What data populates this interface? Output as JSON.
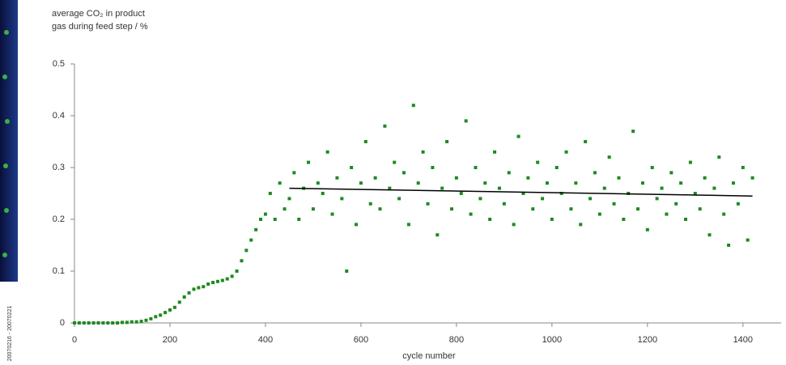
{
  "chart_data": {
    "type": "scatter",
    "title": [
      "average CO₂ in product",
      "gas during feed step / %"
    ],
    "x_label": "cycle number",
    "side_note": "20070216 - 20070221",
    "color": "#1e8a1e",
    "xlim": [
      0,
      1480
    ],
    "xticks": [
      0,
      200,
      400,
      600,
      800,
      1000,
      1200,
      1400
    ],
    "ylim": [
      0,
      0.5
    ],
    "yticks": [
      0,
      0.1,
      0.2,
      0.3,
      0.4,
      0.5
    ],
    "grid": false,
    "x": [
      0,
      10,
      20,
      30,
      40,
      50,
      60,
      70,
      80,
      90,
      100,
      110,
      120,
      130,
      140,
      150,
      160,
      170,
      180,
      190,
      200,
      210,
      220,
      230,
      240,
      250,
      260,
      270,
      280,
      290,
      300,
      310,
      320,
      330,
      340,
      350,
      360,
      370,
      380,
      390,
      400,
      410,
      420,
      430,
      440,
      450,
      460,
      470,
      480,
      490,
      500,
      510,
      520,
      530,
      540,
      550,
      560,
      570,
      580,
      590,
      600,
      610,
      620,
      630,
      640,
      650,
      660,
      670,
      680,
      690,
      700,
      710,
      720,
      730,
      740,
      750,
      760,
      770,
      780,
      790,
      800,
      810,
      820,
      830,
      840,
      850,
      860,
      870,
      880,
      890,
      900,
      910,
      920,
      930,
      940,
      950,
      960,
      970,
      980,
      990,
      1000,
      1010,
      1020,
      1030,
      1040,
      1050,
      1060,
      1070,
      1080,
      1090,
      1100,
      1110,
      1120,
      1130,
      1140,
      1150,
      1160,
      1170,
      1180,
      1190,
      1200,
      1210,
      1220,
      1230,
      1240,
      1250,
      1260,
      1270,
      1280,
      1290,
      1300,
      1310,
      1320,
      1330,
      1340,
      1350,
      1360,
      1370,
      1380,
      1390,
      1400,
      1410,
      1420
    ],
    "values": [
      0,
      0,
      0,
      0,
      0,
      0,
      0,
      0,
      0,
      0,
      0.001,
      0.001,
      0.002,
      0.002,
      0.003,
      0.005,
      0.008,
      0.012,
      0.015,
      0.02,
      0.025,
      0.03,
      0.04,
      0.05,
      0.058,
      0.065,
      0.068,
      0.07,
      0.075,
      0.078,
      0.08,
      0.082,
      0.085,
      0.09,
      0.1,
      0.12,
      0.14,
      0.16,
      0.18,
      0.2,
      0.21,
      0.25,
      0.2,
      0.27,
      0.22,
      0.24,
      0.29,
      0.2,
      0.26,
      0.31,
      0.22,
      0.27,
      0.25,
      0.33,
      0.21,
      0.28,
      0.24,
      0.1,
      0.3,
      0.19,
      0.27,
      0.35,
      0.23,
      0.28,
      0.22,
      0.38,
      0.26,
      0.31,
      0.24,
      0.29,
      0.19,
      0.42,
      0.27,
      0.33,
      0.23,
      0.3,
      0.17,
      0.26,
      0.35,
      0.22,
      0.28,
      0.25,
      0.39,
      0.21,
      0.3,
      0.24,
      0.27,
      0.2,
      0.33,
      0.26,
      0.23,
      0.29,
      0.19,
      0.36,
      0.25,
      0.28,
      0.22,
      0.31,
      0.24,
      0.27,
      0.2,
      0.3,
      0.25,
      0.33,
      0.22,
      0.27,
      0.19,
      0.35,
      0.24,
      0.29,
      0.21,
      0.26,
      0.32,
      0.23,
      0.28,
      0.2,
      0.25,
      0.37,
      0.22,
      0.27,
      0.18,
      0.3,
      0.24,
      0.26,
      0.21,
      0.29,
      0.23,
      0.27,
      0.2,
      0.31,
      0.25,
      0.22,
      0.28,
      0.17,
      0.26,
      0.32,
      0.21,
      0.15,
      0.27,
      0.23,
      0.3,
      0.16,
      0.28
    ],
    "trend": {
      "x": [
        450,
        1420
      ],
      "values": [
        0.26,
        0.245
      ],
      "color": "#000000"
    }
  }
}
